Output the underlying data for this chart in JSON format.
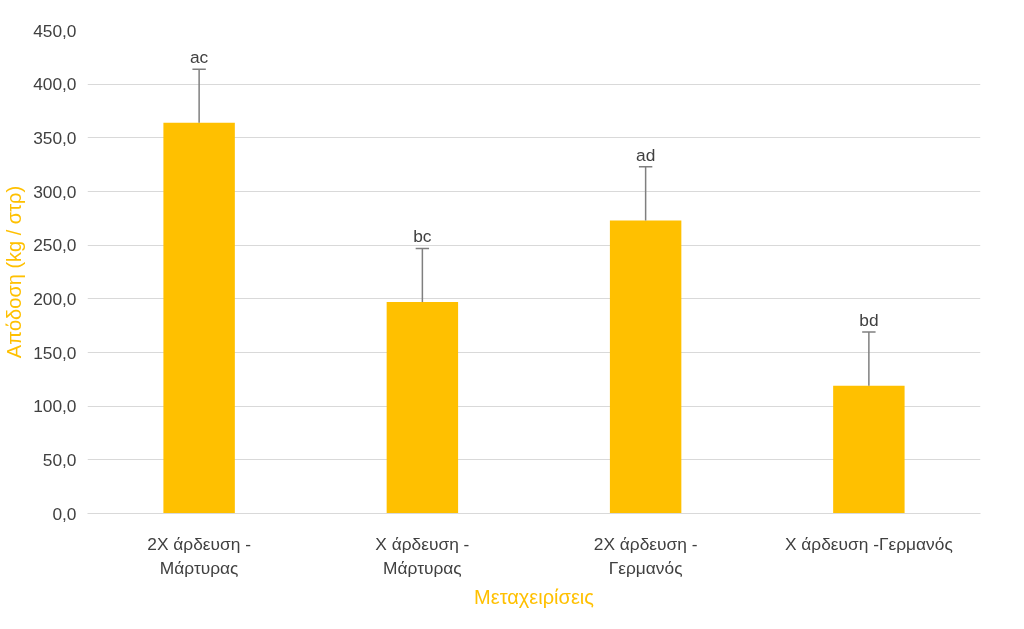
{
  "chart_data": {
    "type": "bar",
    "xlabel": "Μεταχειρίσεις",
    "ylabel": "Απόδοση (kg / στρ)",
    "categories": [
      "2X άρδευση - Μάρτυρας",
      "Χ άρδευση - Μάρτυρας",
      "2X άρδευση - Γερμανός",
      "Χ άρδευση -Γερμανός"
    ],
    "values": [
      364,
      197,
      273,
      119
    ],
    "color": "#ffc000",
    "errors": [
      [
        364,
        414
      ],
      [
        197,
        247
      ],
      [
        273,
        323
      ],
      [
        119,
        169
      ]
    ],
    "ylim": [
      0,
      450
    ],
    "yticks": [
      {
        "value": 0,
        "label": "0,0"
      },
      {
        "value": 50,
        "label": "50,0"
      },
      {
        "value": 100,
        "label": "100,0"
      },
      {
        "value": 150,
        "label": "150,0"
      },
      {
        "value": 200,
        "label": "200,0"
      },
      {
        "value": 250,
        "label": "250,0"
      },
      {
        "value": 300,
        "label": "300,0"
      },
      {
        "value": 350,
        "label": "350,0"
      },
      {
        "value": 400,
        "label": "400,0"
      },
      {
        "value": 450,
        "label": "450,0"
      }
    ],
    "grid": "y",
    "annotations": [
      {
        "text": "ac",
        "x": "2X άρδευση - Μάρτυρας",
        "y": 414
      },
      {
        "text": "bc",
        "x": "Χ άρδευση - Μάρτυρας",
        "y": 247
      },
      {
        "text": "ad",
        "x": "2X άρδευση - Γερμανός",
        "y": 323
      },
      {
        "text": "bd",
        "x": "Χ άρδευση -Γερμανός",
        "y": 169
      }
    ]
  }
}
